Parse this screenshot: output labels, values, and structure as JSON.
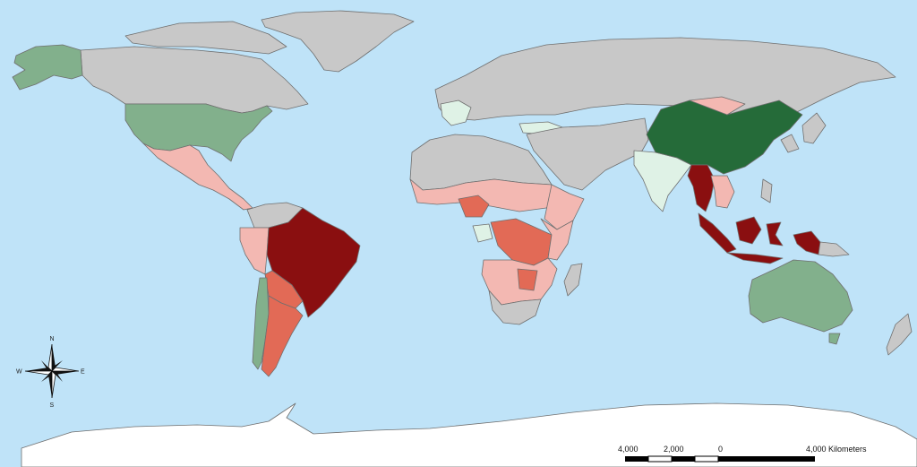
{
  "legend_colors": {
    "water": "#bfe3f8",
    "no_data": "#c8c8c8",
    "dark_green": "#256b39",
    "mid_green": "#82b08c",
    "light_green": "#dff2e6",
    "pale_red": "#f3b8b2",
    "mid_red": "#e26a56",
    "dark_red": "#8a0f10",
    "antarctica": "#ffffff"
  },
  "map_regions": [
    {
      "name": "china",
      "class": "dark_green"
    },
    {
      "name": "usa",
      "class": "mid_green"
    },
    {
      "name": "alaska",
      "class": "mid_green"
    },
    {
      "name": "australia",
      "class": "mid_green"
    },
    {
      "name": "chile",
      "class": "mid_green"
    },
    {
      "name": "brazil",
      "class": "dark_red"
    },
    {
      "name": "myanmar",
      "class": "dark_red"
    },
    {
      "name": "indonesia",
      "class": "dark_red"
    },
    {
      "name": "india",
      "class": "light_green"
    },
    {
      "name": "argentina",
      "class": "mid_red"
    },
    {
      "name": "nigeria",
      "class": "mid_red"
    }
  ],
  "compass": {
    "n": "N",
    "s": "S",
    "e": "E",
    "w": "W"
  },
  "scale_bar": {
    "labels": [
      "4,000",
      "2,000",
      "0",
      "4,000 Kilometers"
    ]
  }
}
